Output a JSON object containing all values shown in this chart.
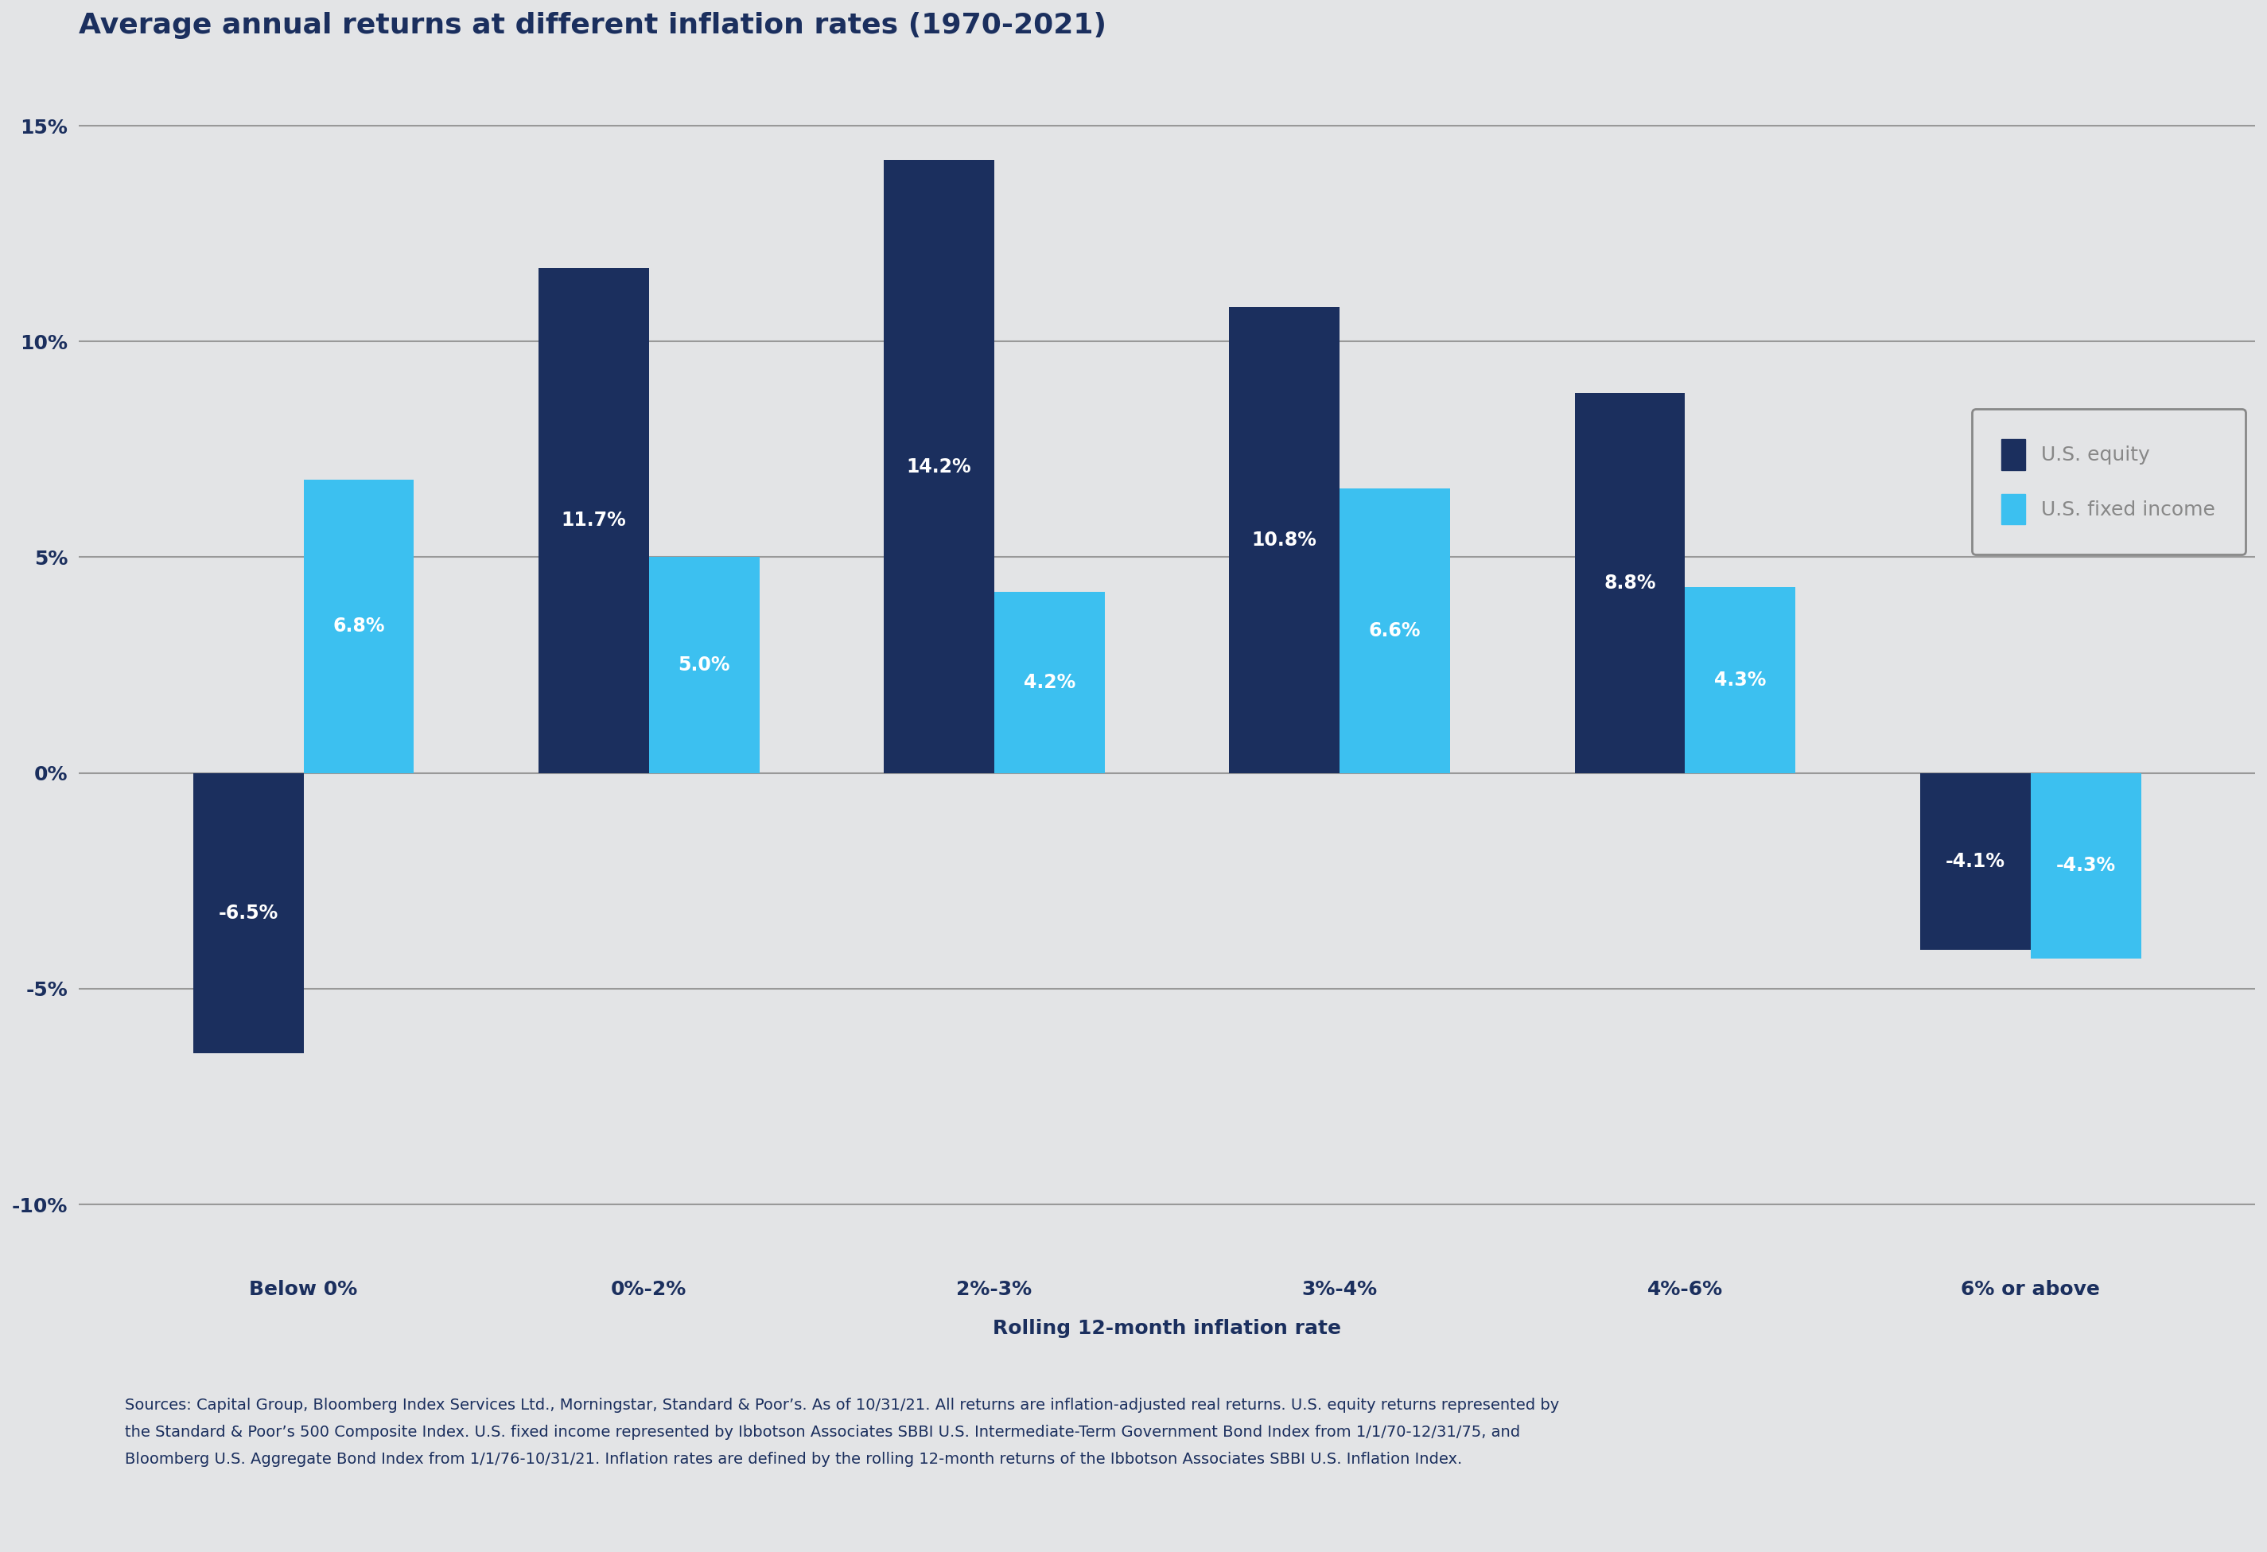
{
  "title": "Average annual returns at different inflation rates (1970-2021)",
  "categories": [
    "Below 0%",
    "0%-2%",
    "2%-3%",
    "3%-4%",
    "4%-6%",
    "6% or above"
  ],
  "equity_values": [
    -6.5,
    11.7,
    14.2,
    10.8,
    8.8,
    -4.1
  ],
  "fixed_income_values": [
    6.8,
    5.0,
    4.2,
    6.6,
    4.3,
    -4.3
  ],
  "equity_color": "#1b2f5e",
  "fixed_income_color": "#3cc0f0",
  "background_color": "#e3e4e6",
  "plot_bg_color": "#e3e4e6",
  "grid_color": "#999999",
  "title_color": "#1b2f5e",
  "xlabel": "Rolling 12-month inflation rate",
  "ylim": [
    -11.5,
    16.5
  ],
  "yticks": [
    -10,
    -5,
    0,
    5,
    10,
    15
  ],
  "ytick_labels": [
    "-10%",
    "-5%",
    "0%",
    "5%",
    "10%",
    "15%"
  ],
  "legend_labels": [
    "U.S. equity",
    "U.S. fixed income"
  ],
  "footnote_line1": "Sources: Capital Group, Bloomberg Index Services Ltd., Morningstar, Standard & Poor’s. As of 10/31/21. All returns are inflation-adjusted real returns. U.S. equity returns represented by",
  "footnote_line2": "the Standard & Poor’s 500 Composite Index. U.S. fixed income represented by Ibbotson Associates SBBI U.S. Intermediate-Term Government Bond Index from 1/1/70-12/31/75, and",
  "footnote_line3": "Bloomberg U.S. Aggregate Bond Index from 1/1/76-10/31/21. Inflation rates are defined by the rolling 12-month returns of the Ibbotson Associates SBBI U.S. Inflation Index.",
  "bar_width": 0.32,
  "title_fontsize": 26,
  "axis_label_fontsize": 18,
  "tick_fontsize": 18,
  "bar_label_fontsize": 17,
  "legend_fontsize": 18,
  "footnote_fontsize": 14,
  "legend_text_color": "#888888"
}
